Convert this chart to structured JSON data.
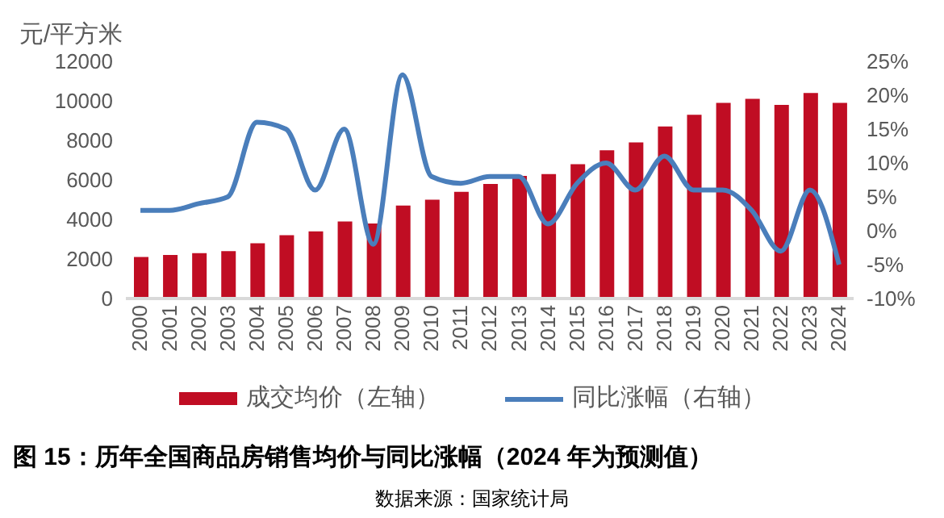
{
  "chart_data": {
    "type": "bar",
    "title": "图 15：历年全国商品房销售均价与同比涨幅（2024 年为预测值）",
    "ylabel": "元/平方米",
    "categories": [
      "2000",
      "2001",
      "2002",
      "2003",
      "2004",
      "2005",
      "2006",
      "2007",
      "2008",
      "2009",
      "2010",
      "2011",
      "2012",
      "2013",
      "2014",
      "2015",
      "2016",
      "2017",
      "2018",
      "2019",
      "2020",
      "2021",
      "2022",
      "2023",
      "2024"
    ],
    "series": [
      {
        "name": "成交均价（左轴）",
        "color": "#c00d23",
        "values": [
          2100,
          2200,
          2300,
          2400,
          2800,
          3200,
          3400,
          3900,
          3800,
          4700,
          5000,
          5400,
          5800,
          6200,
          6300,
          6800,
          7500,
          7900,
          8700,
          9300,
          9900,
          10100,
          9800,
          10400,
          9900
        ]
      },
      {
        "name": "同比涨幅（右轴）",
        "type": "line",
        "axis": "y2",
        "color": "#4a7ebb",
        "values": [
          3,
          3,
          4,
          5,
          16,
          15,
          6,
          15,
          -2,
          23,
          8,
          7,
          8,
          8,
          1,
          7,
          10,
          6,
          11,
          6,
          6,
          3,
          -3,
          6,
          -5
        ]
      }
    ],
    "ylim": [
      0,
      12000
    ],
    "yticks": [
      0,
      2000,
      4000,
      6000,
      8000,
      10000,
      12000
    ],
    "y2lim": [
      -10,
      25
    ],
    "y2ticks": [
      {
        "value": -10,
        "label": "-10%"
      },
      {
        "value": -5,
        "label": "-5%"
      },
      {
        "value": 0,
        "label": "0%"
      },
      {
        "value": 5,
        "label": "5%"
      },
      {
        "value": 10,
        "label": "10%"
      },
      {
        "value": 15,
        "label": "15%"
      },
      {
        "value": 20,
        "label": "20%"
      },
      {
        "value": 25,
        "label": "25%"
      }
    ],
    "grid": false,
    "legend": "bottom",
    "marker": "none",
    "line_style": "solid",
    "annotations": [
      "数据来源：国家统计局"
    ]
  }
}
